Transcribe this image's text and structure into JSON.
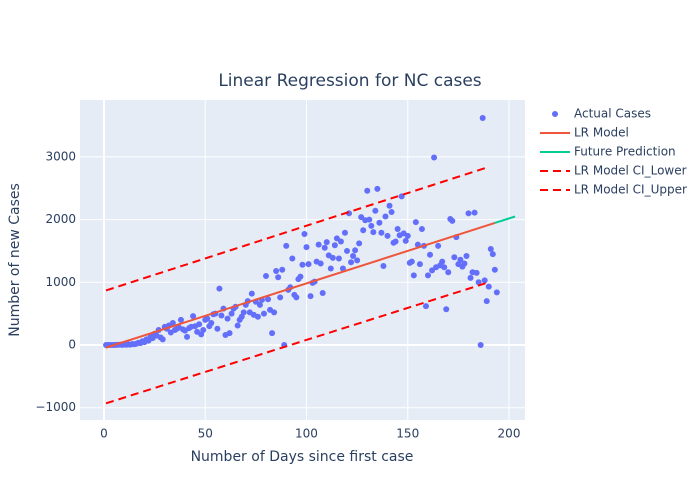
{
  "chart_data": {
    "type": "scatter",
    "title": "Linear Regression for NC cases",
    "x_label": "Number of Days since first case",
    "y_label": "Number of new Cases",
    "xlim": [
      -11.85,
      207.9
    ],
    "ylim": [
      -1196,
      3907
    ],
    "xticks": [
      0,
      50,
      100,
      150,
      200
    ],
    "yticks": [
      {
        "value": -1000,
        "label": "−1000"
      },
      0,
      1000,
      2000,
      3000
    ],
    "grid": true,
    "legend": "right",
    "series": [
      {
        "name": "Actual Cases",
        "mode": "markers",
        "color": "#636efa",
        "x": [
          1,
          2,
          3,
          4,
          5,
          6,
          7,
          8,
          9,
          10,
          11,
          12,
          13,
          14,
          15,
          16,
          17,
          18,
          19,
          20,
          21,
          22,
          23,
          24,
          25,
          26,
          27,
          28,
          29,
          30,
          31,
          32,
          33,
          34,
          35,
          36,
          37,
          38,
          39,
          40,
          41,
          42,
          43,
          44,
          45,
          46,
          47,
          48,
          49,
          50,
          51,
          52,
          53,
          54,
          55,
          56,
          57,
          58,
          59,
          60,
          61,
          62,
          63,
          64,
          65,
          66,
          67,
          68,
          69,
          70,
          71,
          72,
          73,
          74,
          75,
          76,
          77,
          78,
          79,
          80,
          81,
          82,
          83,
          84,
          85,
          86,
          87,
          88,
          89,
          90,
          91,
          92,
          93,
          94,
          95,
          96,
          97,
          98,
          99,
          100,
          101,
          102,
          103,
          104,
          105,
          106,
          107,
          108,
          109,
          110,
          111,
          112,
          113,
          114,
          115,
          116,
          117,
          118,
          119,
          120,
          121,
          122,
          123,
          124,
          125,
          126,
          127,
          128,
          129,
          130,
          131,
          132,
          133,
          134,
          135,
          136,
          137,
          138,
          139,
          140,
          141,
          142,
          143,
          144,
          145,
          146,
          147,
          148,
          149,
          150,
          151,
          152,
          153,
          154,
          155,
          156,
          157,
          158,
          159,
          160,
          161,
          162,
          163,
          164,
          165,
          166,
          167,
          168,
          169,
          170,
          171,
          172,
          173,
          174,
          175,
          176,
          177,
          178,
          179,
          180,
          181,
          182,
          183,
          184,
          185,
          186,
          187,
          188,
          189,
          190,
          191,
          192,
          193,
          194
        ],
        "values": [
          0,
          0,
          0,
          1,
          0,
          2,
          3,
          5,
          1,
          8,
          4,
          10,
          6,
          15,
          12,
          20,
          35,
          30,
          60,
          45,
          90,
          70,
          130,
          110,
          180,
          150,
          240,
          120,
          90,
          290,
          260,
          310,
          200,
          350,
          240,
          260,
          280,
          400,
          250,
          230,
          130,
          270,
          290,
          460,
          300,
          210,
          330,
          170,
          240,
          400,
          420,
          300,
          350,
          490,
          500,
          260,
          900,
          470,
          580,
          160,
          420,
          190,
          500,
          580,
          610,
          310,
          400,
          450,
          520,
          640,
          700,
          520,
          820,
          480,
          690,
          450,
          640,
          720,
          500,
          1100,
          730,
          560,
          190,
          520,
          1180,
          1080,
          760,
          1200,
          0,
          1580,
          880,
          920,
          1380,
          800,
          760,
          1050,
          1090,
          1280,
          1770,
          1560,
          1290,
          780,
          990,
          1010,
          1330,
          1600,
          1300,
          830,
          1550,
          1640,
          1430,
          1220,
          1390,
          1590,
          1700,
          1380,
          1650,
          1220,
          1790,
          1500,
          2100,
          1320,
          1420,
          1510,
          1350,
          1620,
          2040,
          1830,
          1990,
          2460,
          2000,
          1900,
          1800,
          2140,
          2490,
          1950,
          1790,
          1260,
          2050,
          1740,
          2220,
          2120,
          1630,
          1650,
          1850,
          1750,
          2370,
          1780,
          1660,
          1740,
          1310,
          1330,
          1110,
          1960,
          1600,
          1290,
          1850,
          1580,
          620,
          1110,
          1440,
          1190,
          2990,
          1240,
          1580,
          1270,
          1330,
          1240,
          570,
          1160,
          2010,
          1980,
          1400,
          1720,
          1290,
          1360,
          1250,
          1300,
          1420,
          2100,
          1070,
          1160,
          2110,
          1150,
          1000,
          0,
          3620,
          1030,
          700,
          930,
          1530,
          1450,
          1200,
          840
        ]
      },
      {
        "name": "LR Model",
        "mode": "lines",
        "color": "#ef553b",
        "x": [
          1,
          193
        ],
        "values": [
          -42,
          1946
        ]
      },
      {
        "name": "Future Prediction",
        "mode": "lines",
        "color": "#00cc96",
        "x": [
          193,
          203
        ],
        "values": [
          1946,
          2049
        ]
      },
      {
        "name": "LR Model CI_Lower",
        "mode": "lines",
        "dash": true,
        "color": "#ff0000",
        "x": [
          1,
          190
        ],
        "values": [
          -930,
          1000
        ]
      },
      {
        "name": "LR Model CI_Upper",
        "mode": "lines",
        "dash": true,
        "color": "#ff0000",
        "x": [
          1,
          190
        ],
        "values": [
          870,
          2840
        ]
      }
    ]
  }
}
